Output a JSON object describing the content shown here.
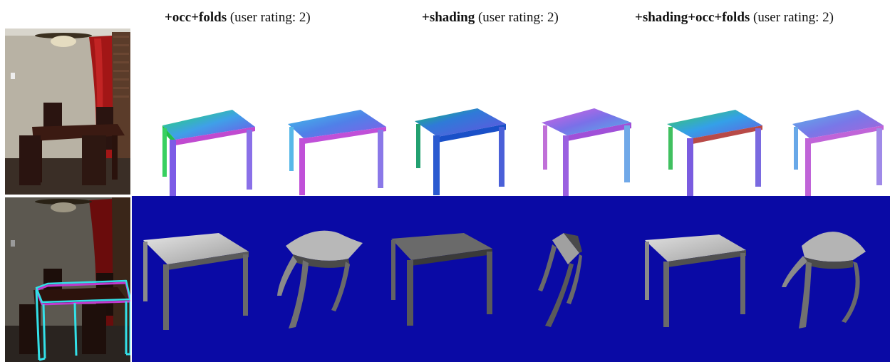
{
  "columns": [
    {
      "method": "+occ+folds",
      "rating_text": " (user rating: 2)"
    },
    {
      "method": "+shading",
      "rating_text": " (user rating: 2)"
    },
    {
      "method": "+shading+occ+folds",
      "rating_text": " (user rating: 2)"
    }
  ],
  "colors": {
    "background_panel": "#0a0aa5",
    "outline_cyan": "#33e0e8",
    "outline_magenta": "#c03ad0"
  },
  "icons": [
    "room-photo",
    "normal-map-table-render",
    "shaded-table-render"
  ]
}
